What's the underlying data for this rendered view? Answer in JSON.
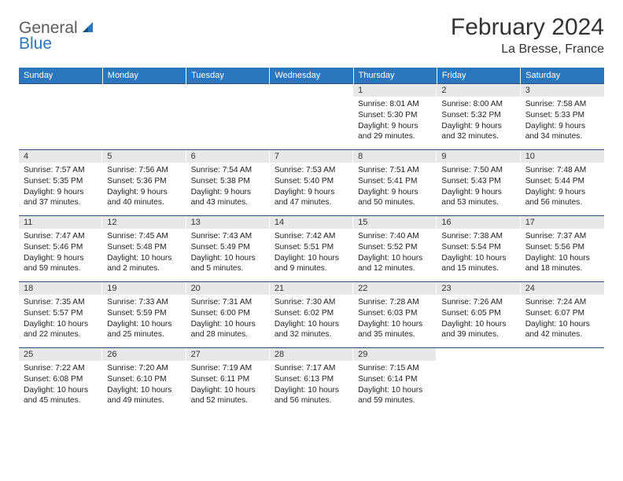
{
  "logo": {
    "general": "General",
    "blue": "Blue"
  },
  "title": "February 2024",
  "location": "La Bresse, France",
  "colors": {
    "header_bg": "#2b77bd",
    "header_text": "#ffffff",
    "daynum_bg": "#e8e8e8",
    "border": "#2b4f73",
    "logo_gray": "#5b5b5b",
    "logo_blue": "#2b77bd"
  },
  "day_headers": [
    "Sunday",
    "Monday",
    "Tuesday",
    "Wednesday",
    "Thursday",
    "Friday",
    "Saturday"
  ],
  "weeks": [
    [
      {
        "num": "",
        "sunrise": "",
        "sunset": "",
        "daylight1": "",
        "daylight2": ""
      },
      {
        "num": "",
        "sunrise": "",
        "sunset": "",
        "daylight1": "",
        "daylight2": ""
      },
      {
        "num": "",
        "sunrise": "",
        "sunset": "",
        "daylight1": "",
        "daylight2": ""
      },
      {
        "num": "",
        "sunrise": "",
        "sunset": "",
        "daylight1": "",
        "daylight2": ""
      },
      {
        "num": "1",
        "sunrise": "Sunrise: 8:01 AM",
        "sunset": "Sunset: 5:30 PM",
        "daylight1": "Daylight: 9 hours",
        "daylight2": "and 29 minutes."
      },
      {
        "num": "2",
        "sunrise": "Sunrise: 8:00 AM",
        "sunset": "Sunset: 5:32 PM",
        "daylight1": "Daylight: 9 hours",
        "daylight2": "and 32 minutes."
      },
      {
        "num": "3",
        "sunrise": "Sunrise: 7:58 AM",
        "sunset": "Sunset: 5:33 PM",
        "daylight1": "Daylight: 9 hours",
        "daylight2": "and 34 minutes."
      }
    ],
    [
      {
        "num": "4",
        "sunrise": "Sunrise: 7:57 AM",
        "sunset": "Sunset: 5:35 PM",
        "daylight1": "Daylight: 9 hours",
        "daylight2": "and 37 minutes."
      },
      {
        "num": "5",
        "sunrise": "Sunrise: 7:56 AM",
        "sunset": "Sunset: 5:36 PM",
        "daylight1": "Daylight: 9 hours",
        "daylight2": "and 40 minutes."
      },
      {
        "num": "6",
        "sunrise": "Sunrise: 7:54 AM",
        "sunset": "Sunset: 5:38 PM",
        "daylight1": "Daylight: 9 hours",
        "daylight2": "and 43 minutes."
      },
      {
        "num": "7",
        "sunrise": "Sunrise: 7:53 AM",
        "sunset": "Sunset: 5:40 PM",
        "daylight1": "Daylight: 9 hours",
        "daylight2": "and 47 minutes."
      },
      {
        "num": "8",
        "sunrise": "Sunrise: 7:51 AM",
        "sunset": "Sunset: 5:41 PM",
        "daylight1": "Daylight: 9 hours",
        "daylight2": "and 50 minutes."
      },
      {
        "num": "9",
        "sunrise": "Sunrise: 7:50 AM",
        "sunset": "Sunset: 5:43 PM",
        "daylight1": "Daylight: 9 hours",
        "daylight2": "and 53 minutes."
      },
      {
        "num": "10",
        "sunrise": "Sunrise: 7:48 AM",
        "sunset": "Sunset: 5:44 PM",
        "daylight1": "Daylight: 9 hours",
        "daylight2": "and 56 minutes."
      }
    ],
    [
      {
        "num": "11",
        "sunrise": "Sunrise: 7:47 AM",
        "sunset": "Sunset: 5:46 PM",
        "daylight1": "Daylight: 9 hours",
        "daylight2": "and 59 minutes."
      },
      {
        "num": "12",
        "sunrise": "Sunrise: 7:45 AM",
        "sunset": "Sunset: 5:48 PM",
        "daylight1": "Daylight: 10 hours",
        "daylight2": "and 2 minutes."
      },
      {
        "num": "13",
        "sunrise": "Sunrise: 7:43 AM",
        "sunset": "Sunset: 5:49 PM",
        "daylight1": "Daylight: 10 hours",
        "daylight2": "and 5 minutes."
      },
      {
        "num": "14",
        "sunrise": "Sunrise: 7:42 AM",
        "sunset": "Sunset: 5:51 PM",
        "daylight1": "Daylight: 10 hours",
        "daylight2": "and 9 minutes."
      },
      {
        "num": "15",
        "sunrise": "Sunrise: 7:40 AM",
        "sunset": "Sunset: 5:52 PM",
        "daylight1": "Daylight: 10 hours",
        "daylight2": "and 12 minutes."
      },
      {
        "num": "16",
        "sunrise": "Sunrise: 7:38 AM",
        "sunset": "Sunset: 5:54 PM",
        "daylight1": "Daylight: 10 hours",
        "daylight2": "and 15 minutes."
      },
      {
        "num": "17",
        "sunrise": "Sunrise: 7:37 AM",
        "sunset": "Sunset: 5:56 PM",
        "daylight1": "Daylight: 10 hours",
        "daylight2": "and 18 minutes."
      }
    ],
    [
      {
        "num": "18",
        "sunrise": "Sunrise: 7:35 AM",
        "sunset": "Sunset: 5:57 PM",
        "daylight1": "Daylight: 10 hours",
        "daylight2": "and 22 minutes."
      },
      {
        "num": "19",
        "sunrise": "Sunrise: 7:33 AM",
        "sunset": "Sunset: 5:59 PM",
        "daylight1": "Daylight: 10 hours",
        "daylight2": "and 25 minutes."
      },
      {
        "num": "20",
        "sunrise": "Sunrise: 7:31 AM",
        "sunset": "Sunset: 6:00 PM",
        "daylight1": "Daylight: 10 hours",
        "daylight2": "and 28 minutes."
      },
      {
        "num": "21",
        "sunrise": "Sunrise: 7:30 AM",
        "sunset": "Sunset: 6:02 PM",
        "daylight1": "Daylight: 10 hours",
        "daylight2": "and 32 minutes."
      },
      {
        "num": "22",
        "sunrise": "Sunrise: 7:28 AM",
        "sunset": "Sunset: 6:03 PM",
        "daylight1": "Daylight: 10 hours",
        "daylight2": "and 35 minutes."
      },
      {
        "num": "23",
        "sunrise": "Sunrise: 7:26 AM",
        "sunset": "Sunset: 6:05 PM",
        "daylight1": "Daylight: 10 hours",
        "daylight2": "and 39 minutes."
      },
      {
        "num": "24",
        "sunrise": "Sunrise: 7:24 AM",
        "sunset": "Sunset: 6:07 PM",
        "daylight1": "Daylight: 10 hours",
        "daylight2": "and 42 minutes."
      }
    ],
    [
      {
        "num": "25",
        "sunrise": "Sunrise: 7:22 AM",
        "sunset": "Sunset: 6:08 PM",
        "daylight1": "Daylight: 10 hours",
        "daylight2": "and 45 minutes."
      },
      {
        "num": "26",
        "sunrise": "Sunrise: 7:20 AM",
        "sunset": "Sunset: 6:10 PM",
        "daylight1": "Daylight: 10 hours",
        "daylight2": "and 49 minutes."
      },
      {
        "num": "27",
        "sunrise": "Sunrise: 7:19 AM",
        "sunset": "Sunset: 6:11 PM",
        "daylight1": "Daylight: 10 hours",
        "daylight2": "and 52 minutes."
      },
      {
        "num": "28",
        "sunrise": "Sunrise: 7:17 AM",
        "sunset": "Sunset: 6:13 PM",
        "daylight1": "Daylight: 10 hours",
        "daylight2": "and 56 minutes."
      },
      {
        "num": "29",
        "sunrise": "Sunrise: 7:15 AM",
        "sunset": "Sunset: 6:14 PM",
        "daylight1": "Daylight: 10 hours",
        "daylight2": "and 59 minutes."
      },
      {
        "num": "",
        "sunrise": "",
        "sunset": "",
        "daylight1": "",
        "daylight2": ""
      },
      {
        "num": "",
        "sunrise": "",
        "sunset": "",
        "daylight1": "",
        "daylight2": ""
      }
    ]
  ]
}
